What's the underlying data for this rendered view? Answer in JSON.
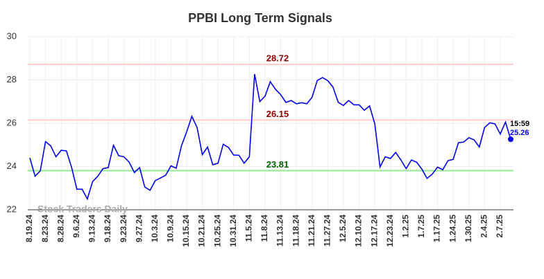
{
  "chart_data": {
    "type": "line",
    "title": "PPBI Long Term Signals",
    "watermark": "Stock Traders Daily",
    "categories": [
      "8.19.24",
      null,
      null,
      "8.23.24",
      null,
      null,
      "8.28.24",
      null,
      null,
      "9.6.24",
      null,
      null,
      "9.13.24",
      null,
      null,
      "9.18.24",
      null,
      null,
      "9.23.24",
      null,
      null,
      "9.27.24",
      null,
      null,
      "10.3.24",
      null,
      null,
      "10.9.24",
      null,
      null,
      "10.15.24",
      null,
      null,
      "10.21.24",
      null,
      null,
      "10.25.24",
      null,
      null,
      "10.31.24",
      null,
      null,
      "11.5.24",
      null,
      null,
      "11.8.24",
      null,
      null,
      "11.13.24",
      null,
      null,
      "11.18.24",
      null,
      null,
      "11.21.24",
      null,
      null,
      "11.27.24",
      null,
      null,
      "12.5.24",
      null,
      null,
      "12.10.24",
      null,
      null,
      "12.17.24",
      null,
      null,
      "12.23.24",
      null,
      null,
      "1.2.25",
      null,
      null,
      "1.7.25",
      null,
      null,
      "1.17.25",
      null,
      null,
      "1.24.25",
      null,
      null,
      "1.30.25",
      null,
      null,
      "2.4.25",
      null,
      null,
      "2.7.25",
      null,
      null
    ],
    "series": [
      {
        "name": "PPBI",
        "color": "#0000ee",
        "values": [
          24.4,
          23.55,
          23.8,
          25.15,
          24.95,
          24.45,
          24.75,
          24.72,
          23.95,
          22.95,
          22.95,
          22.5,
          23.3,
          23.55,
          23.9,
          23.95,
          24.98,
          24.5,
          24.45,
          24.2,
          23.72,
          23.95,
          23.05,
          22.9,
          23.35,
          23.47,
          23.6,
          24.03,
          23.92,
          24.95,
          25.6,
          26.32,
          25.8,
          24.55,
          24.9,
          24.08,
          24.15,
          25.03,
          24.88,
          24.53,
          24.52,
          24.15,
          24.45,
          28.27,
          27.0,
          27.25,
          27.92,
          27.57,
          27.32,
          26.96,
          27.05,
          26.9,
          26.95,
          26.9,
          27.2,
          27.98,
          28.11,
          27.97,
          27.67,
          26.97,
          26.82,
          27.05,
          26.85,
          26.85,
          26.6,
          26.8,
          25.97,
          23.98,
          24.45,
          24.37,
          24.65,
          24.3,
          23.9,
          24.3,
          24.2,
          23.88,
          23.45,
          23.65,
          23.97,
          23.85,
          24.27,
          24.33,
          25.1,
          25.13,
          25.33,
          25.23,
          24.9,
          25.8,
          26.02,
          25.97,
          25.5,
          26.05,
          25.26
        ]
      }
    ],
    "last_time": "15:59",
    "hlines": [
      {
        "value": 28.72,
        "color": "#ffcccc",
        "label_color": "#8b0000"
      },
      {
        "value": 26.15,
        "color": "#ffcccc",
        "label_color": "#8b0000"
      },
      {
        "value": 23.81,
        "color": "#90ee90",
        "label_color": "#006400"
      }
    ],
    "ylim": [
      22,
      30
    ],
    "yticks": [
      22,
      24,
      26,
      28,
      30
    ],
    "grid": true
  }
}
